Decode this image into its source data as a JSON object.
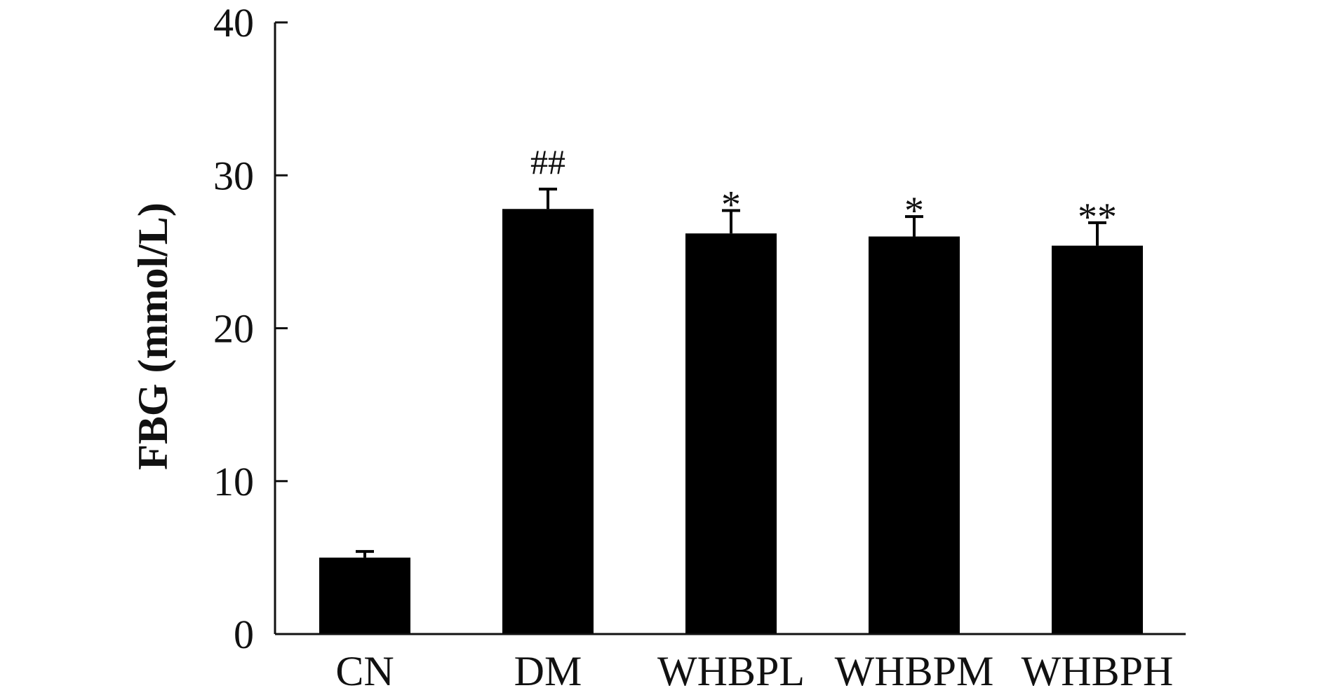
{
  "chart_data": {
    "type": "bar",
    "title": "",
    "xlabel": "",
    "ylabel": "FBG (mmol/L)",
    "ylim": [
      0,
      40
    ],
    "yticks": [
      0,
      10,
      20,
      30,
      40
    ],
    "grid": false,
    "legend": "none",
    "categories": [
      "CN",
      "DM",
      "WHBPL",
      "WHBPM",
      "WHBPH"
    ],
    "values": [
      5.0,
      27.8,
      26.2,
      26.0,
      25.4
    ],
    "errors": [
      0.4,
      1.3,
      1.5,
      1.3,
      1.5
    ],
    "annotations": [
      "",
      "##",
      "*",
      "*",
      "**"
    ],
    "bar_color": "#000000",
    "axis_color": "#111111"
  }
}
